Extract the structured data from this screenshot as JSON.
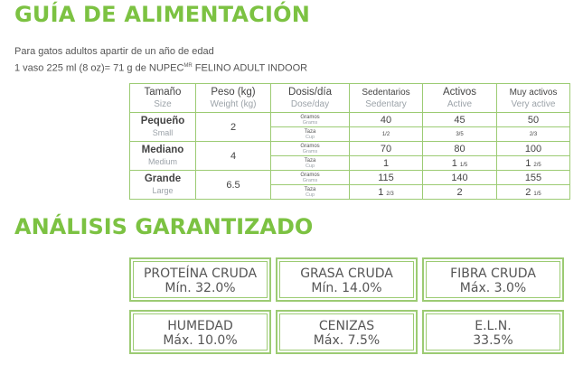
{
  "title": "GUÍA DE ALIMENTACIÓN",
  "intro": {
    "line1": "Para gatos adultos apartir de un año de edad",
    "line2_pre": "1 vaso 225 ml (8 oz)= 71 g de NUPEC",
    "line2_mark": "MR",
    "line2_post": " FELINO ADULT INDOOR"
  },
  "table": {
    "headers": [
      {
        "main": "Tamaño",
        "sub": "Size"
      },
      {
        "main": "Peso (kg)",
        "sub": "Weight (kg)"
      },
      {
        "main": "Dosis/día",
        "sub": "Dose/day"
      },
      {
        "main": "Sedentarios",
        "sub": "Sedentary"
      },
      {
        "main": "Activos",
        "sub": "Active"
      },
      {
        "main": "Muy activos",
        "sub": "Very active"
      }
    ],
    "unit_grams": {
      "main": "Gramos",
      "sub": "Grams"
    },
    "unit_cup": {
      "main": "Taza",
      "sub": "Cup"
    },
    "rows": [
      {
        "size": "Pequeño",
        "size_en": "Small",
        "weight": "2",
        "grams": [
          "40",
          "45",
          "50"
        ],
        "cups": [
          {
            "whole": "",
            "frac": "1/2"
          },
          {
            "whole": "",
            "frac": "3/5"
          },
          {
            "whole": "",
            "frac": "2/3"
          }
        ]
      },
      {
        "size": "Mediano",
        "size_en": "Medium",
        "weight": "4",
        "grams": [
          "70",
          "80",
          "100"
        ],
        "cups": [
          {
            "whole": "1",
            "frac": ""
          },
          {
            "whole": "1",
            "frac": "1/5"
          },
          {
            "whole": "1",
            "frac": "2/5"
          }
        ]
      },
      {
        "size": "Grande",
        "size_en": "Large",
        "weight": "6.5",
        "grams": [
          "115",
          "140",
          "155"
        ],
        "cups": [
          {
            "whole": "1",
            "frac": "2/3"
          },
          {
            "whole": "2",
            "frac": ""
          },
          {
            "whole": "2",
            "frac": "1/5"
          }
        ]
      }
    ]
  },
  "analysis_title": "ANÁLISIS GARANTIZADO",
  "analysis": [
    {
      "name": "PROTEÍNA CRUDA",
      "value": "Mín. 32.0%"
    },
    {
      "name": "GRASA CRUDA",
      "value": "Mín. 14.0%"
    },
    {
      "name": "FIBRA CRUDA",
      "value": "Máx. 3.0%"
    },
    {
      "name": "HUMEDAD",
      "value": "Máx. 10.0%"
    },
    {
      "name": "CENIZAS",
      "value": "Máx. 7.5%"
    },
    {
      "name": "E.L.N.",
      "value": "33.5%"
    }
  ],
  "colors": {
    "accent": "#7cc242",
    "border": "#9ccb73",
    "text": "#555555",
    "subtext": "#9ca3a9"
  }
}
